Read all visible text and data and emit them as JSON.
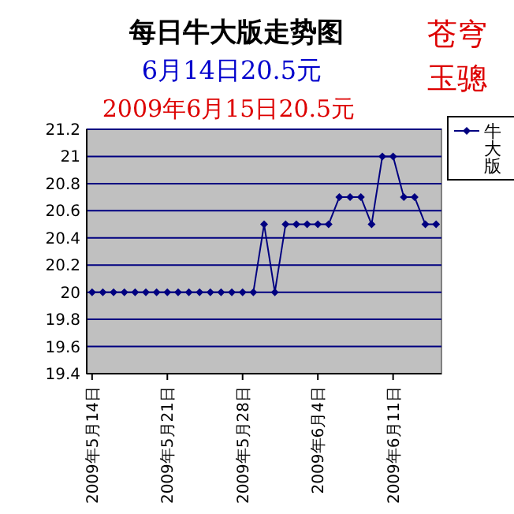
{
  "chart_data": {
    "type": "line",
    "title": "每日牛大版走势图",
    "subtitle": "6月14日20.5元",
    "annotations": [
      "2009年6月15日20.5元",
      "苍穹玉骢"
    ],
    "x": [
      "2009-05-14",
      "2009-05-15",
      "2009-05-16",
      "2009-05-17",
      "2009-05-18",
      "2009-05-19",
      "2009-05-20",
      "2009-05-21",
      "2009-05-22",
      "2009-05-23",
      "2009-05-24",
      "2009-05-25",
      "2009-05-26",
      "2009-05-27",
      "2009-05-28",
      "2009-05-29",
      "2009-05-30",
      "2009-05-31",
      "2009-06-01",
      "2009-06-02",
      "2009-06-03",
      "2009-06-04",
      "2009-06-05",
      "2009-06-06",
      "2009-06-07",
      "2009-06-08",
      "2009-06-09",
      "2009-06-10",
      "2009-06-11",
      "2009-06-12",
      "2009-06-13",
      "2009-06-14",
      "2009-06-15"
    ],
    "series": [
      {
        "name": "牛大版",
        "color": "#000080",
        "values": [
          20,
          20,
          20,
          20,
          20,
          20,
          20,
          20,
          20,
          20,
          20,
          20,
          20,
          20,
          20,
          20,
          20.5,
          20,
          20.5,
          20.5,
          20.5,
          20.5,
          20.5,
          20.7,
          20.7,
          20.7,
          20.5,
          21,
          21,
          20.7,
          20.7,
          20.5,
          20.5
        ]
      }
    ],
    "xlim": [
      "2009-05-13T12:00",
      "2009-06-15T12:00"
    ],
    "xticks": [
      {
        "value": "2009-05-14",
        "label": "2009年5月14日"
      },
      {
        "value": "2009-05-21",
        "label": "2009年5月21日"
      },
      {
        "value": "2009-05-28",
        "label": "2009年5月28日"
      },
      {
        "value": "2009-06-04",
        "label": "2009年6月4日"
      },
      {
        "value": "2009-06-11",
        "label": "2009年6月11日"
      }
    ],
    "ylim": [
      19.4,
      21.2
    ],
    "yticks": [
      19.4,
      19.6,
      19.8,
      20,
      20.2,
      20.4,
      20.6,
      20.8,
      21,
      21.2
    ],
    "grid": "y",
    "legend": "right",
    "marker": "diamond",
    "line_style": "solid"
  }
}
